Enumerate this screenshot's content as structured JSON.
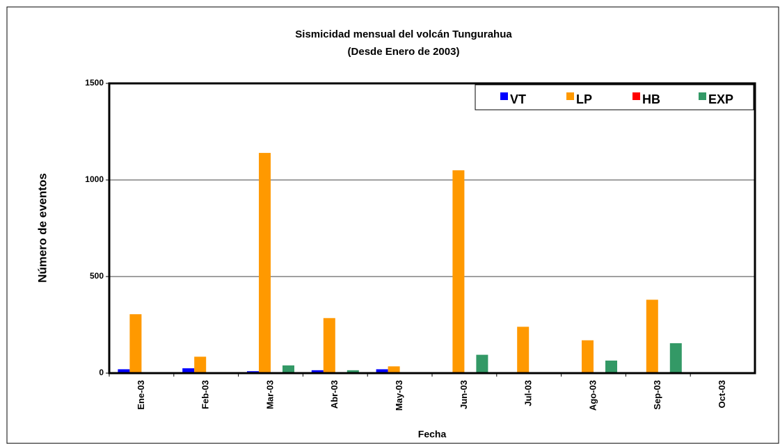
{
  "chart_data": {
    "type": "bar",
    "title": "Sismicidad mensual del volcán Tungurahua",
    "subtitle": "(Desde Enero de 2003)",
    "x_label": "Fecha",
    "y_label": "Número de eventos",
    "categories": [
      "Ene-03",
      "Feb-03",
      "Mar-03",
      "Abr-03",
      "May-03",
      "Jun-03",
      "Jul-03",
      "Ago-03",
      "Sep-03",
      "Oct-03"
    ],
    "series": [
      {
        "name": "VT",
        "color": "#0000ff",
        "values": [
          20,
          25,
          10,
          15,
          20,
          5,
          5,
          5,
          5,
          2
        ]
      },
      {
        "name": "LP",
        "color": "#ff9900",
        "values": [
          305,
          85,
          1140,
          285,
          35,
          1050,
          240,
          170,
          380,
          2
        ]
      },
      {
        "name": "HB",
        "color": "#ff0000",
        "values": [
          5,
          3,
          5,
          3,
          3,
          5,
          3,
          3,
          5,
          2
        ]
      },
      {
        "name": "EXP",
        "color": "#339966",
        "values": [
          5,
          5,
          40,
          15,
          5,
          95,
          5,
          65,
          155,
          2
        ]
      }
    ],
    "ylim": [
      0,
      1500
    ],
    "yticks": [
      0,
      500,
      1000,
      1500
    ],
    "grid": true,
    "legend": "top-right"
  }
}
